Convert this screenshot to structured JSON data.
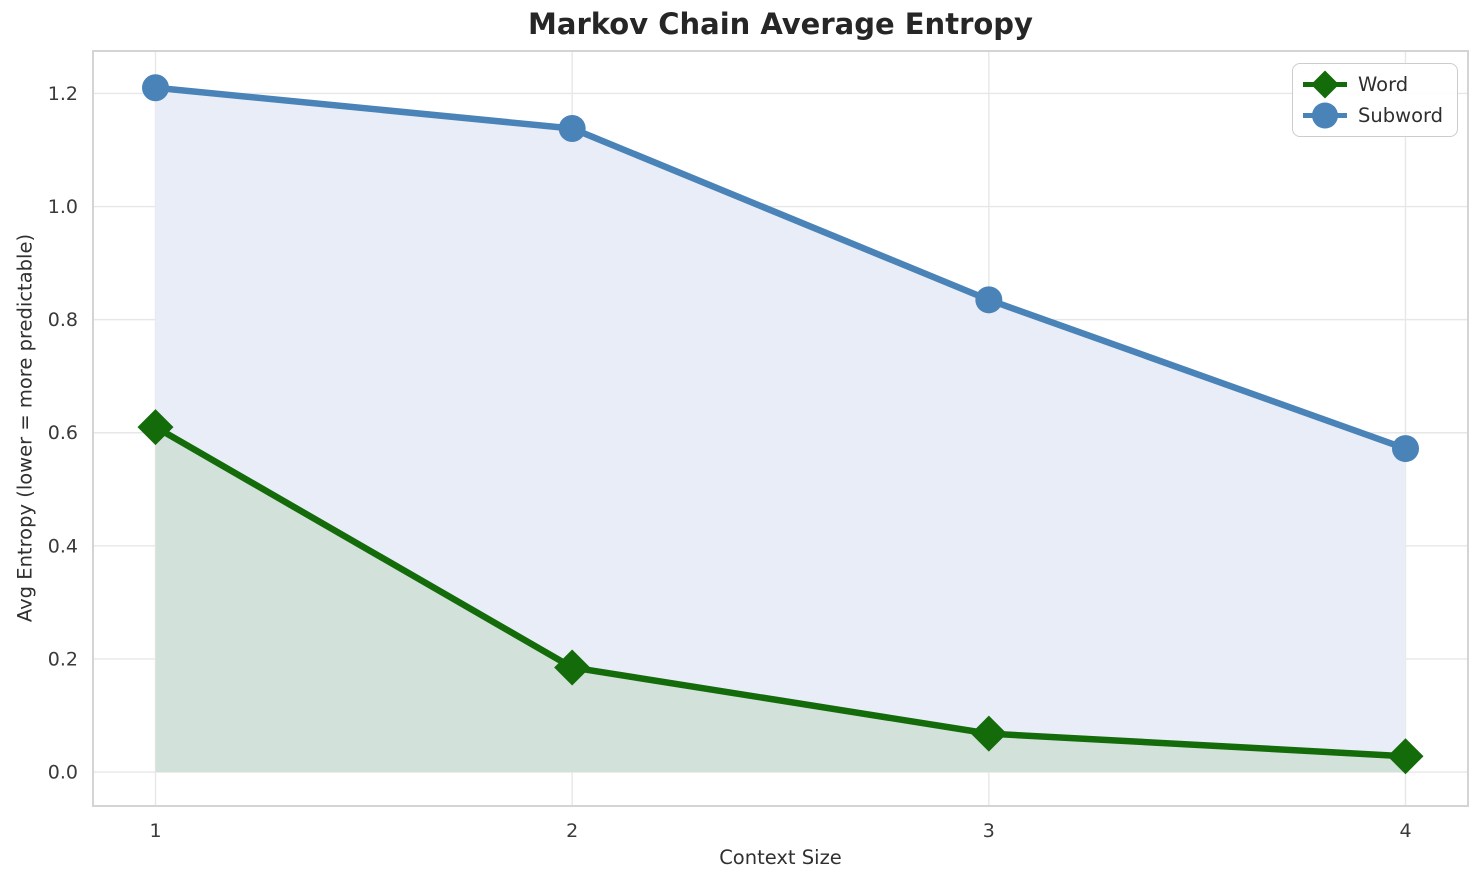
{
  "chart_data": {
    "type": "line",
    "title": "Markov Chain Average Entropy",
    "xlabel": "Context Size",
    "ylabel": "Avg Entropy (lower = more predictable)",
    "x": [
      1,
      2,
      3,
      4
    ],
    "series": [
      {
        "name": "Word",
        "values": [
          0.61,
          0.185,
          0.068,
          0.028
        ],
        "color": "#146B0A",
        "fill": "#D3E1DB",
        "marker": "diamond"
      },
      {
        "name": "Subword",
        "values": [
          1.21,
          1.138,
          0.835,
          0.572
        ],
        "color": "#4A83B7",
        "fill": "#E9EDF7",
        "marker": "circle"
      }
    ],
    "xticks": [
      "1",
      "2",
      "3",
      "4"
    ],
    "xtick_values": [
      1,
      2,
      3,
      4
    ],
    "yticks": [
      "0.0",
      "0.2",
      "0.4",
      "0.6",
      "0.8",
      "1.0",
      "1.2"
    ],
    "ytick_values": [
      0,
      0.2,
      0.4,
      0.6,
      0.8,
      1.0,
      1.2
    ],
    "xlim": [
      0.85,
      4.15
    ],
    "ylim": [
      -0.06,
      1.275
    ],
    "grid": true,
    "fill_baseline": 0,
    "legend_position": "upper right",
    "grid_color": "#e7e7e7",
    "spine_color": "#d4d4d4",
    "tick_label_color": "#3a3a3a"
  }
}
